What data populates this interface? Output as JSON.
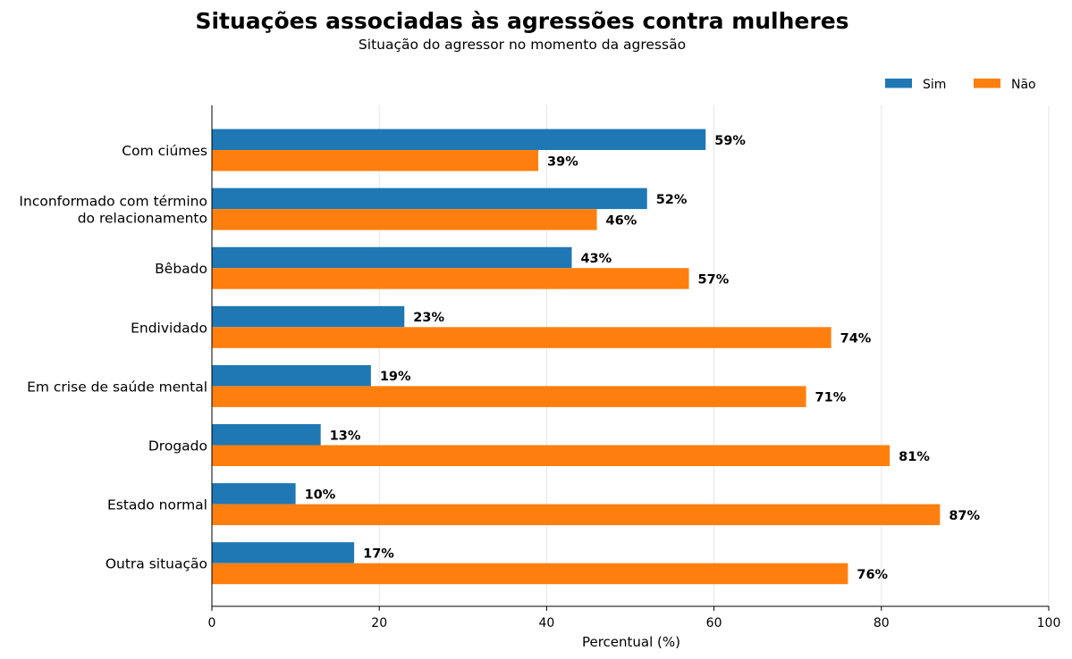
{
  "chart_data": {
    "type": "bar",
    "orientation": "horizontal",
    "title": "Situações associadas às agressões contra mulheres",
    "subtitle": "Situação do agressor no momento da agressão",
    "xlabel": "Percentual (%)",
    "ylabel": "",
    "xlim": [
      0,
      100
    ],
    "xticks": [
      0,
      20,
      40,
      60,
      80,
      100
    ],
    "grid": "vertical",
    "legend_position": "top-right",
    "value_suffix": "%",
    "categories": [
      [
        "Com ciúmes"
      ],
      [
        "Inconformado com término",
        "do relacionamento"
      ],
      [
        "Bêbado"
      ],
      [
        "Endividado"
      ],
      [
        "Em crise de saúde mental"
      ],
      [
        "Drogado"
      ],
      [
        "Estado normal"
      ],
      [
        "Outra situação"
      ]
    ],
    "series": [
      {
        "name": "Sim",
        "color": "#1f77b4",
        "values": [
          59,
          52,
          43,
          23,
          19,
          13,
          10,
          17
        ]
      },
      {
        "name": "Não",
        "color": "#ff7f0e",
        "values": [
          39,
          46,
          57,
          74,
          71,
          81,
          87,
          76
        ]
      }
    ]
  }
}
